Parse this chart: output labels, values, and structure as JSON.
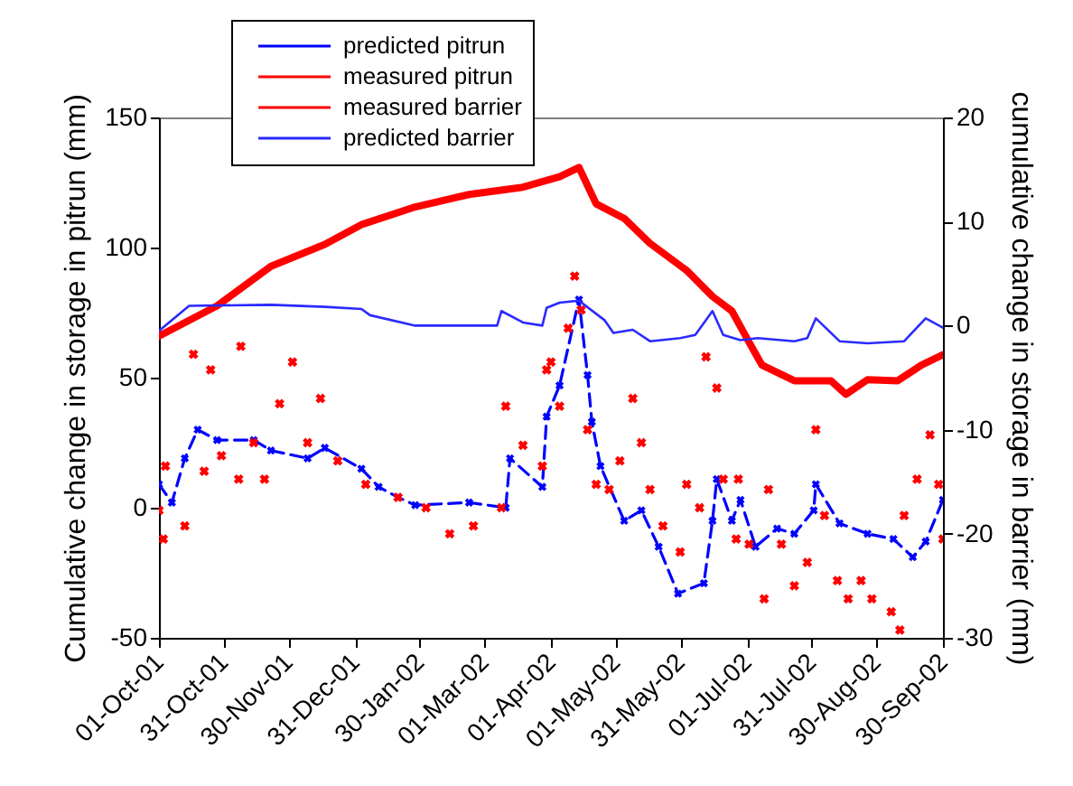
{
  "chart_data": {
    "type": "line",
    "ylabel": "Cumulative change in storage in pitrun (mm)",
    "y2label": "cumulative change in storage in barrier (mm)",
    "xlim": [
      "2001-10-01",
      "2002-09-30"
    ],
    "xticks": [
      {
        "value": "2001-10-01",
        "label": "01-Oct-01"
      },
      {
        "value": "2001-10-31",
        "label": "31-Oct-01"
      },
      {
        "value": "2001-11-30",
        "label": "30-Nov-01"
      },
      {
        "value": "2001-12-31",
        "label": "31-Dec-01"
      },
      {
        "value": "2002-01-30",
        "label": "30-Jan-02"
      },
      {
        "value": "2002-03-01",
        "label": "01-Mar-02"
      },
      {
        "value": "2002-04-01",
        "label": "01-Apr-02"
      },
      {
        "value": "2002-05-01",
        "label": "01-May-02"
      },
      {
        "value": "2002-05-31",
        "label": "31-May-02"
      },
      {
        "value": "2002-07-01",
        "label": "01-Jul-02"
      },
      {
        "value": "2002-07-31",
        "label": "31-Jul-02"
      },
      {
        "value": "2002-08-30",
        "label": "30-Aug-02"
      },
      {
        "value": "2002-09-30",
        "label": "30-Sep-02"
      }
    ],
    "ylim": [
      -50,
      150
    ],
    "yticks": [
      -50,
      0,
      50,
      100,
      150
    ],
    "y2lim": [
      -30,
      20
    ],
    "y2ticks": [
      -30,
      -20,
      -10,
      0,
      10,
      20
    ],
    "legend": "top",
    "series": [
      {
        "name": "predicted pitrun",
        "color": "#0000ff",
        "line_style": "dashed",
        "marker": "cross",
        "x": [
          "2001-10-01",
          "2001-10-07",
          "2001-10-13",
          "2001-10-19",
          "2001-10-28",
          "2001-11-14",
          "2001-11-22",
          "2001-12-09",
          "2001-12-17",
          "2002-01-03",
          "2002-01-11",
          "2002-01-20",
          "2002-01-28",
          "2002-02-22",
          "2002-03-11",
          "2002-03-13",
          "2002-03-28",
          "2002-03-30",
          "2002-04-05",
          "2002-04-14",
          "2002-04-18",
          "2002-04-20",
          "2002-04-24",
          "2002-05-05",
          "2002-05-13",
          "2002-05-21",
          "2002-05-30",
          "2002-06-11",
          "2002-06-15",
          "2002-06-17",
          "2002-06-24",
          "2002-06-28",
          "2002-07-05",
          "2002-07-15",
          "2002-07-23",
          "2002-08-01",
          "2002-08-02",
          "2002-08-13",
          "2002-08-26",
          "2002-09-07",
          "2002-09-16",
          "2002-09-22",
          "2002-09-30"
        ],
        "values": [
          9,
          2,
          19,
          30,
          26,
          26,
          22,
          19,
          23,
          15,
          8,
          4,
          1,
          2,
          0,
          19,
          8,
          35,
          47,
          80,
          51,
          33,
          16,
          -5,
          -1,
          -15,
          -33,
          -29,
          -5,
          11,
          -5,
          3,
          -15,
          -8,
          -10,
          -1,
          9,
          -6,
          -10,
          -12,
          -19,
          -13,
          3
        ]
      },
      {
        "name": "measured pitrun",
        "type": "scatter",
        "color": "#ff0000",
        "marker": "cross",
        "x": [
          "2001-10-01",
          "2001-10-03",
          "2001-10-04",
          "2001-10-13",
          "2001-10-17",
          "2001-10-22",
          "2001-10-25",
          "2001-10-30",
          "2001-11-07",
          "2001-11-08",
          "2001-11-14",
          "2001-11-19",
          "2001-11-26",
          "2001-12-02",
          "2001-12-09",
          "2001-12-15",
          "2001-12-23",
          "2002-01-05",
          "2002-01-20",
          "2002-02-02",
          "2002-02-13",
          "2002-02-24",
          "2002-03-09",
          "2002-03-11",
          "2002-03-19",
          "2002-03-28",
          "2002-03-30",
          "2002-04-01",
          "2002-04-05",
          "2002-04-09",
          "2002-04-12",
          "2002-04-15",
          "2002-04-18",
          "2002-04-22",
          "2002-04-28",
          "2002-05-03",
          "2002-05-09",
          "2002-05-13",
          "2002-05-17",
          "2002-05-23",
          "2002-05-31",
          "2002-06-03",
          "2002-06-09",
          "2002-06-12",
          "2002-06-17",
          "2002-06-20",
          "2002-06-26",
          "2002-06-27",
          "2002-07-02",
          "2002-07-09",
          "2002-07-11",
          "2002-07-17",
          "2002-07-23",
          "2002-07-29",
          "2002-08-02",
          "2002-08-06",
          "2002-08-12",
          "2002-08-17",
          "2002-08-23",
          "2002-08-28",
          "2002-09-06",
          "2002-09-10",
          "2002-09-12",
          "2002-09-18",
          "2002-09-24",
          "2002-09-28",
          "2002-09-30"
        ],
        "values": [
          -1,
          -12,
          16,
          -7,
          59,
          14,
          53,
          20,
          11,
          62,
          25,
          11,
          40,
          56,
          25,
          42,
          18,
          9,
          4,
          0,
          -10,
          -7,
          0,
          39,
          24,
          16,
          53,
          56,
          39,
          69,
          89,
          76,
          30,
          9,
          7,
          18,
          42,
          25,
          7,
          -7,
          -17,
          9,
          0,
          58,
          46,
          11,
          -12,
          11,
          -14,
          -35,
          7,
          -14,
          -30,
          -21,
          30,
          -3,
          -28,
          -35,
          -28,
          -35,
          -40,
          -47,
          -3,
          11,
          28,
          9,
          -12
        ]
      },
      {
        "name": "measured barrier",
        "axis": "y2",
        "color": "#ff0000",
        "x": [
          "2001-10-01",
          "2001-10-28",
          "2001-11-22",
          "2001-12-17",
          "2002-01-03",
          "2002-01-28",
          "2002-02-22",
          "2002-03-19",
          "2002-04-05",
          "2002-04-14",
          "2002-04-22",
          "2002-05-05",
          "2002-05-17",
          "2002-06-03",
          "2002-06-15",
          "2002-06-24",
          "2002-07-02",
          "2002-07-08",
          "2002-07-23",
          "2002-08-09",
          "2002-08-16",
          "2002-08-26",
          "2002-09-09",
          "2002-09-20",
          "2002-09-30"
        ],
        "values": [
          -1,
          1.9,
          5.7,
          7.8,
          9.7,
          11.4,
          12.6,
          13.3,
          14.3,
          15.2,
          11.7,
          10.3,
          7.9,
          5.3,
          2.8,
          1.4,
          -1.6,
          -3.8,
          -5.3,
          -5.3,
          -6.6,
          -5.2,
          -5.3,
          -3.8,
          -2.8
        ]
      },
      {
        "name": "predicted barrier",
        "axis": "y2",
        "color": "#2a2aff",
        "x": [
          "2001-10-01",
          "2001-10-15",
          "2001-11-22",
          "2001-12-17",
          "2002-01-03",
          "2002-01-07",
          "2002-01-28",
          "2002-03-07",
          "2002-03-09",
          "2002-03-19",
          "2002-03-28",
          "2002-03-30",
          "2002-04-05",
          "2002-04-14",
          "2002-04-26",
          "2002-04-30",
          "2002-05-09",
          "2002-05-17",
          "2002-05-31",
          "2002-06-07",
          "2002-06-15",
          "2002-06-20",
          "2002-06-28",
          "2002-07-06",
          "2002-07-23",
          "2002-07-29",
          "2002-08-02",
          "2002-08-13",
          "2002-08-26",
          "2002-09-12",
          "2002-09-22",
          "2002-09-30"
        ],
        "values": [
          -0.5,
          1.9,
          2,
          1.8,
          1.6,
          1,
          0,
          0,
          1.4,
          0.3,
          0,
          1.7,
          2.2,
          2.4,
          0.5,
          -0.7,
          -0.4,
          -1.5,
          -1.2,
          -0.9,
          1.4,
          -0.9,
          -1.4,
          -1.2,
          -1.5,
          -1.2,
          0.7,
          -1.5,
          -1.7,
          -1.5,
          0.7,
          -0.2
        ]
      }
    ]
  }
}
